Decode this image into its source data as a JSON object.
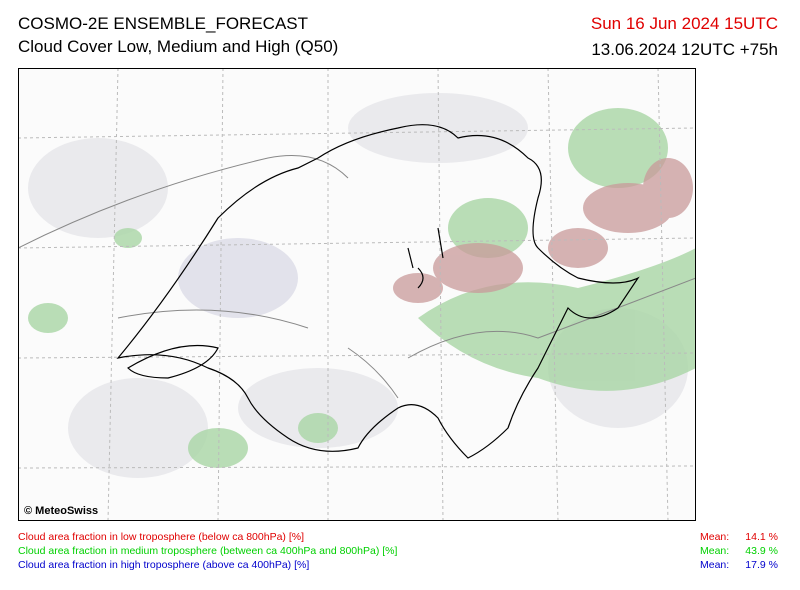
{
  "header": {
    "title": "COSMO-2E ENSEMBLE_FORECAST",
    "subtitle": "Cloud Cover Low, Medium and High (Q50)",
    "valid_time": "Sun 16 Jun 2024 15UTC",
    "run": "13.06.2024 12UTC +75h"
  },
  "map": {
    "copyright": "© MeteoSwiss"
  },
  "legend": {
    "items": [
      {
        "label": "Cloud area fraction in low troposphere (below ca 800hPa) [%]",
        "mean_label": "Mean:",
        "mean": "14.1 %"
      },
      {
        "label": "Cloud area fraction in medium troposphere (between ca 400hPa and 800hPa) [%]",
        "mean_label": "Mean:",
        "mean": "43.9 %"
      },
      {
        "label": "Cloud area fraction in high troposphere (above ca 400hPa) [%]",
        "mean_label": "Mean:",
        "mean": "17.9 %"
      }
    ]
  }
}
